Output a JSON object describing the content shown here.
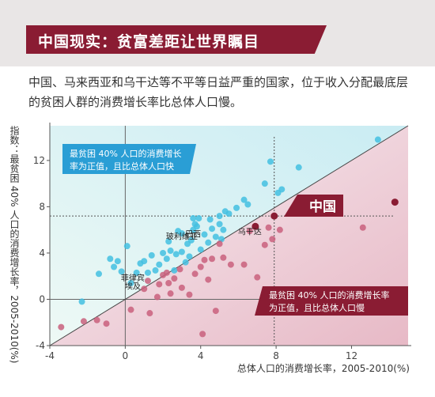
{
  "header": {
    "title": "中国现实：贫富差距让世界瞩目",
    "subtitle": "中国、马来西亚和乌干达等不平等日益严重的国家，位于收入分配最底层的贫困人群的消费增长率比总体人口慢。"
  },
  "colors": {
    "above": "#43bfe0",
    "below": "#c9607c",
    "dark": "#8a1c33",
    "upper_box": "#2a9ed5"
  },
  "chart_data": {
    "type": "scatter",
    "xlabel": "总体人口的消费增长率，2005-2010(%)",
    "ylabel": "指数：最贫困 40% 人口的消费增长率，2005-2010(%)",
    "xlim": [
      -4,
      15
    ],
    "ylim": [
      -4,
      15
    ],
    "xticks": [
      -4,
      0,
      4,
      8,
      12
    ],
    "yticks": [
      -4,
      0,
      4,
      8,
      12
    ],
    "tick_labels": [
      "-4",
      "0",
      "4",
      "8",
      "12"
    ],
    "reference_line": [
      [
        -4,
        -4
      ],
      [
        15,
        15
      ]
    ],
    "guide": {
      "x": 7.9,
      "y": 7.2
    },
    "annotations": {
      "upper": "最贫困 40% 人口的消费增长率为正值，且比总体人口快",
      "lower": "最贫困 40% 人口的消费增长率为正值，且比总体人口慢",
      "china": "中国"
    },
    "labels": [
      {
        "text": "玻利维亚",
        "x": 3.0,
        "y": 5.2
      },
      {
        "text": "巴西",
        "x": 3.6,
        "y": 5.4
      },
      {
        "text": "乌干达",
        "x": 6.6,
        "y": 5.6
      },
      {
        "text": "菲律宾",
        "x": 0.4,
        "y": 1.6
      },
      {
        "text": "埃及",
        "x": 0.4,
        "y": 0.9
      }
    ],
    "series": [
      {
        "group": "above",
        "points": [
          [
            -2.3,
            -0.2
          ],
          [
            -1.4,
            2.2
          ],
          [
            -0.8,
            3.5
          ],
          [
            -0.4,
            3.3
          ],
          [
            -0.6,
            2.8
          ],
          [
            -0.2,
            2.4
          ],
          [
            0.3,
            1.4
          ],
          [
            0.1,
            4.6
          ],
          [
            0.6,
            2.3
          ],
          [
            0.8,
            3.1
          ],
          [
            1.0,
            3.3
          ],
          [
            1.2,
            2.3
          ],
          [
            1.4,
            3.8
          ],
          [
            1.6,
            2.5
          ],
          [
            1.8,
            3.0
          ],
          [
            2.0,
            4.0
          ],
          [
            2.2,
            3.5
          ],
          [
            2.3,
            5.0
          ],
          [
            2.4,
            4.2
          ],
          [
            2.6,
            2.5
          ],
          [
            2.7,
            3.9
          ],
          [
            2.8,
            5.9
          ],
          [
            3.0,
            5.7
          ],
          [
            3.0,
            4.1
          ],
          [
            3.2,
            3.2
          ],
          [
            3.3,
            4.8
          ],
          [
            3.4,
            3.7
          ],
          [
            3.5,
            5.1
          ],
          [
            3.6,
            6.0
          ],
          [
            3.7,
            6.5
          ],
          [
            3.6,
            7.0
          ],
          [
            3.9,
            7.0
          ],
          [
            3.8,
            6.3
          ],
          [
            4.0,
            4.3
          ],
          [
            4.2,
            5.6
          ],
          [
            4.4,
            4.9
          ],
          [
            4.6,
            6.1
          ],
          [
            4.8,
            5.4
          ],
          [
            5.0,
            6.5
          ],
          [
            5.2,
            6.0
          ],
          [
            5.3,
            7.6
          ],
          [
            4.5,
            6.9
          ],
          [
            5.0,
            7.2
          ],
          [
            5.1,
            5.2
          ],
          [
            5.5,
            7.4
          ],
          [
            5.9,
            7.9
          ],
          [
            6.3,
            8.6
          ],
          [
            6.5,
            8.2
          ],
          [
            7.4,
            10.0
          ],
          [
            7.7,
            11.9
          ],
          [
            8.3,
            9.5
          ],
          [
            8.1,
            9.2
          ],
          [
            9.2,
            11.4
          ],
          [
            13.4,
            13.8
          ]
        ]
      },
      {
        "group": "below",
        "points": [
          [
            -3.4,
            -2.4
          ],
          [
            -1.5,
            -1.8
          ],
          [
            -2.2,
            -1.9
          ],
          [
            -1.0,
            -2.1
          ],
          [
            0.3,
            -0.9
          ],
          [
            1.0,
            0.9
          ],
          [
            1.3,
            -1.2
          ],
          [
            1.7,
            0.2
          ],
          [
            1.8,
            1.3
          ],
          [
            2.0,
            2.1
          ],
          [
            2.3,
            1.4
          ],
          [
            2.4,
            0.5
          ],
          [
            2.6,
            1.8
          ],
          [
            2.9,
            2.6
          ],
          [
            3.0,
            1.0
          ],
          [
            3.4,
            0.4
          ],
          [
            3.7,
            2.2
          ],
          [
            4.0,
            2.8
          ],
          [
            4.2,
            3.4
          ],
          [
            4.4,
            1.7
          ],
          [
            4.6,
            3.5
          ],
          [
            4.8,
            -1.0
          ],
          [
            5.0,
            4.8
          ],
          [
            5.2,
            3.6
          ],
          [
            5.6,
            3.0
          ],
          [
            6.3,
            3.0
          ],
          [
            6.6,
            5.9
          ],
          [
            7.0,
            1.9
          ],
          [
            7.4,
            4.7
          ],
          [
            7.6,
            6.2
          ],
          [
            7.8,
            5.2
          ],
          [
            8.2,
            6.0
          ],
          [
            4.1,
            -3.0
          ],
          [
            2.2,
            2.3
          ],
          [
            1.2,
            1.6
          ],
          [
            12.6,
            6.2
          ]
        ]
      },
      {
        "group": "highlight",
        "points": [
          [
            6.9,
            6.3
          ],
          [
            7.9,
            7.2
          ],
          [
            14.3,
            8.4
          ]
        ]
      }
    ]
  }
}
